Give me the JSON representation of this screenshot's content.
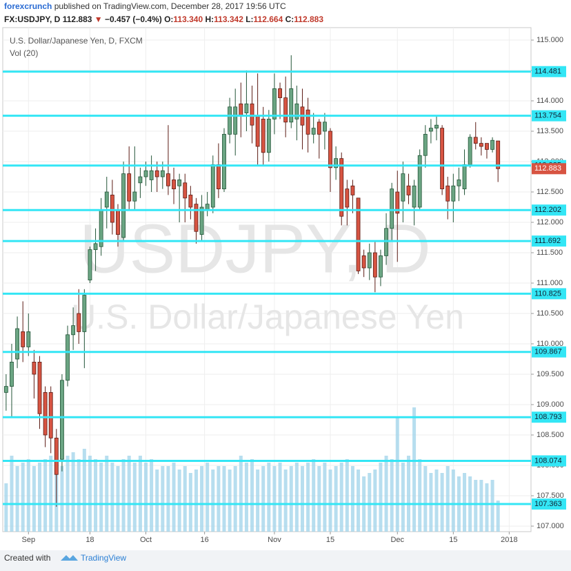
{
  "header": {
    "author": "forexcrunch",
    "published": "published on TradingView.com, December 28, 2017 19:56 UTC",
    "symbol": "FX:USDJPY, D",
    "last": "112.883",
    "arrow": "▼",
    "change": "−0.457 (−0.4%)",
    "open_label": "O:",
    "open": "113.340",
    "high_label": "H:",
    "high": "113.342",
    "low_label": "L:",
    "low": "112.664",
    "close_label": "C:",
    "close": "112.883"
  },
  "footer": {
    "created": "Created with",
    "brand": "TradingView"
  },
  "chart_data": {
    "type": "candlestick",
    "title": "U.S. Dollar/Japanese Yen, D, FXCM",
    "subtitle": "Vol (20)",
    "watermark": "USDJPY, D",
    "watermark_sub": "U.S. Dollar/Japanese Yen",
    "up_color": "#6ba583",
    "down_color": "#d75442",
    "volume_color": "#9fd3ea",
    "level_color": "#33e6f5",
    "grid": true,
    "xlim": [
      -0.6,
      93.9
    ],
    "ylim": [
      106.909,
      115.205
    ],
    "xticks": [
      {
        "value": 4,
        "label": "Sep"
      },
      {
        "value": 15,
        "label": "18"
      },
      {
        "value": 25,
        "label": "Oct"
      },
      {
        "value": 35.5,
        "label": "16"
      },
      {
        "value": 48,
        "label": "Nov"
      },
      {
        "value": 58,
        "label": "15"
      },
      {
        "value": 70,
        "label": "Dec"
      },
      {
        "value": 80,
        "label": "15"
      },
      {
        "value": 90,
        "label": "2018"
      }
    ],
    "yticks": [
      {
        "value": 107,
        "label": "107.000"
      },
      {
        "value": 107.5,
        "label": "107.500"
      },
      {
        "value": 108,
        "label": "108.000"
      },
      {
        "value": 108.5,
        "label": "108.500"
      },
      {
        "value": 109,
        "label": "109.000"
      },
      {
        "value": 109.5,
        "label": "109.500"
      },
      {
        "value": 110,
        "label": "110.000"
      },
      {
        "value": 110.5,
        "label": "110.500"
      },
      {
        "value": 111,
        "label": "111.000"
      },
      {
        "value": 111.5,
        "label": "111.500"
      },
      {
        "value": 112,
        "label": "112.000"
      },
      {
        "value": 112.5,
        "label": "112.500"
      },
      {
        "value": 113,
        "label": "113.000"
      },
      {
        "value": 113.5,
        "label": "113.500"
      },
      {
        "value": 114,
        "label": "114.000"
      },
      {
        "value": 114.5,
        "label": "114.500"
      },
      {
        "value": 115,
        "label": "115.000"
      }
    ],
    "levels": [
      114.481,
      113.754,
      112.935,
      112.202,
      111.692,
      110.825,
      109.867,
      108.793,
      108.074,
      107.363
    ],
    "last_price": 112.883,
    "candles": [
      {
        "o": 109.2,
        "h": 109.5,
        "l": 108.9,
        "c": 109.3
      },
      {
        "o": 109.3,
        "h": 110.0,
        "l": 108.8,
        "c": 109.7
      },
      {
        "o": 109.75,
        "h": 110.45,
        "l": 109.6,
        "c": 110.25
      },
      {
        "o": 110.2,
        "h": 110.7,
        "l": 109.7,
        "c": 109.95
      },
      {
        "o": 109.95,
        "h": 110.5,
        "l": 109.8,
        "c": 110.2
      },
      {
        "o": 109.7,
        "h": 109.9,
        "l": 109.1,
        "c": 109.5
      },
      {
        "o": 109.7,
        "h": 109.8,
        "l": 108.6,
        "c": 108.85
      },
      {
        "o": 109.2,
        "h": 109.3,
        "l": 108.3,
        "c": 108.5
      },
      {
        "o": 109.2,
        "h": 109.3,
        "l": 108.2,
        "c": 108.45
      },
      {
        "o": 108.45,
        "h": 108.6,
        "l": 107.32,
        "c": 107.85
      },
      {
        "o": 108.1,
        "h": 109.5,
        "l": 107.9,
        "c": 109.4
      },
      {
        "o": 109.4,
        "h": 110.3,
        "l": 109.3,
        "c": 110.15
      },
      {
        "o": 110.15,
        "h": 110.6,
        "l": 109.9,
        "c": 110.3
      },
      {
        "o": 110.5,
        "h": 110.9,
        "l": 110.0,
        "c": 110.2
      },
      {
        "o": 110.2,
        "h": 110.9,
        "l": 109.6,
        "c": 110.8
      },
      {
        "o": 111.05,
        "h": 111.6,
        "l": 111.0,
        "c": 111.55
      },
      {
        "o": 111.55,
        "h": 111.9,
        "l": 111.2,
        "c": 111.65
      },
      {
        "o": 111.6,
        "h": 112.4,
        "l": 111.45,
        "c": 112.2
      },
      {
        "o": 112.25,
        "h": 112.75,
        "l": 111.9,
        "c": 112.5
      },
      {
        "o": 112.45,
        "h": 112.7,
        "l": 111.8,
        "c": 112.0
      },
      {
        "o": 112.2,
        "h": 112.3,
        "l": 111.6,
        "c": 111.8
      },
      {
        "o": 111.75,
        "h": 113.0,
        "l": 111.7,
        "c": 112.8
      },
      {
        "o": 112.8,
        "h": 113.25,
        "l": 112.2,
        "c": 112.35
      },
      {
        "o": 112.35,
        "h": 113.25,
        "l": 112.2,
        "c": 112.5
      },
      {
        "o": 112.65,
        "h": 112.9,
        "l": 112.4,
        "c": 112.75
      },
      {
        "o": 112.75,
        "h": 113.0,
        "l": 112.6,
        "c": 112.85
      },
      {
        "o": 112.7,
        "h": 113.1,
        "l": 112.5,
        "c": 112.85
      },
      {
        "o": 112.85,
        "h": 113.0,
        "l": 112.5,
        "c": 112.75
      },
      {
        "o": 112.75,
        "h": 113.0,
        "l": 112.55,
        "c": 112.85
      },
      {
        "o": 112.8,
        "h": 113.6,
        "l": 112.45,
        "c": 112.6
      },
      {
        "o": 112.7,
        "h": 112.9,
        "l": 112.3,
        "c": 112.55
      },
      {
        "o": 112.6,
        "h": 112.8,
        "l": 112.0,
        "c": 112.7
      },
      {
        "o": 112.65,
        "h": 112.8,
        "l": 112.0,
        "c": 112.4
      },
      {
        "o": 112.45,
        "h": 112.6,
        "l": 112.05,
        "c": 112.25
      },
      {
        "o": 112.3,
        "h": 112.4,
        "l": 111.65,
        "c": 111.85
      },
      {
        "o": 111.8,
        "h": 112.45,
        "l": 111.7,
        "c": 112.25
      },
      {
        "o": 112.2,
        "h": 112.5,
        "l": 112.1,
        "c": 112.3
      },
      {
        "o": 112.25,
        "h": 113.1,
        "l": 112.15,
        "c": 112.95
      },
      {
        "o": 112.95,
        "h": 113.3,
        "l": 112.4,
        "c": 112.55
      },
      {
        "o": 112.55,
        "h": 113.55,
        "l": 112.5,
        "c": 113.45
      },
      {
        "o": 113.45,
        "h": 114.05,
        "l": 113.3,
        "c": 113.9
      },
      {
        "o": 113.45,
        "h": 114.2,
        "l": 113.1,
        "c": 113.9
      },
      {
        "o": 113.95,
        "h": 114.3,
        "l": 113.4,
        "c": 113.75
      },
      {
        "o": 113.8,
        "h": 114.5,
        "l": 113.5,
        "c": 113.95
      },
      {
        "o": 113.95,
        "h": 114.25,
        "l": 113.3,
        "c": 113.6
      },
      {
        "o": 113.75,
        "h": 114.45,
        "l": 112.95,
        "c": 113.25
      },
      {
        "o": 113.7,
        "h": 113.9,
        "l": 112.95,
        "c": 113.15
      },
      {
        "o": 113.15,
        "h": 113.85,
        "l": 113.0,
        "c": 113.7
      },
      {
        "o": 113.7,
        "h": 114.45,
        "l": 113.45,
        "c": 114.2
      },
      {
        "o": 114.2,
        "h": 114.3,
        "l": 113.7,
        "c": 114.05
      },
      {
        "o": 114.05,
        "h": 114.4,
        "l": 113.4,
        "c": 113.65
      },
      {
        "o": 113.65,
        "h": 114.75,
        "l": 113.55,
        "c": 114.2
      },
      {
        "o": 113.7,
        "h": 114.25,
        "l": 113.35,
        "c": 113.95
      },
      {
        "o": 113.9,
        "h": 114.2,
        "l": 113.2,
        "c": 113.6
      },
      {
        "o": 113.85,
        "h": 114.05,
        "l": 113.15,
        "c": 113.45
      },
      {
        "o": 113.45,
        "h": 113.8,
        "l": 113.3,
        "c": 113.55
      },
      {
        "o": 113.65,
        "h": 113.7,
        "l": 113.05,
        "c": 113.45
      },
      {
        "o": 113.5,
        "h": 113.8,
        "l": 113.2,
        "c": 113.65
      },
      {
        "o": 113.5,
        "h": 113.55,
        "l": 112.5,
        "c": 112.9
      },
      {
        "o": 112.9,
        "h": 113.25,
        "l": 112.7,
        "c": 113.05
      },
      {
        "o": 113.05,
        "h": 113.15,
        "l": 111.95,
        "c": 112.1
      },
      {
        "o": 112.55,
        "h": 112.7,
        "l": 111.95,
        "c": 112.25
      },
      {
        "o": 112.6,
        "h": 112.7,
        "l": 112.15,
        "c": 112.45
      },
      {
        "o": 112.4,
        "h": 112.4,
        "l": 111.15,
        "c": 111.2
      },
      {
        "o": 111.45,
        "h": 111.55,
        "l": 111.1,
        "c": 111.25
      },
      {
        "o": 111.25,
        "h": 111.65,
        "l": 111.05,
        "c": 111.5
      },
      {
        "o": 111.5,
        "h": 111.7,
        "l": 110.85,
        "c": 111.1
      },
      {
        "o": 111.1,
        "h": 111.55,
        "l": 110.95,
        "c": 111.45
      },
      {
        "o": 111.45,
        "h": 112.15,
        "l": 111.3,
        "c": 111.9
      },
      {
        "o": 111.9,
        "h": 112.65,
        "l": 111.7,
        "c": 112.55
      },
      {
        "o": 112.5,
        "h": 112.85,
        "l": 111.35,
        "c": 112.15
      },
      {
        "o": 112.35,
        "h": 113.0,
        "l": 112.0,
        "c": 112.8
      },
      {
        "o": 112.6,
        "h": 112.8,
        "l": 112.3,
        "c": 112.45
      },
      {
        "o": 112.25,
        "h": 112.7,
        "l": 111.95,
        "c": 112.6
      },
      {
        "o": 112.25,
        "h": 113.2,
        "l": 112.2,
        "c": 113.1
      },
      {
        "o": 113.1,
        "h": 113.6,
        "l": 112.9,
        "c": 113.45
      },
      {
        "o": 113.5,
        "h": 113.7,
        "l": 113.3,
        "c": 113.55
      },
      {
        "o": 113.55,
        "h": 113.75,
        "l": 113.35,
        "c": 113.6
      },
      {
        "o": 113.55,
        "h": 113.6,
        "l": 112.45,
        "c": 112.55
      },
      {
        "o": 112.6,
        "h": 112.75,
        "l": 112.05,
        "c": 112.35
      },
      {
        "o": 112.35,
        "h": 112.8,
        "l": 112.0,
        "c": 112.6
      },
      {
        "o": 112.6,
        "h": 112.9,
        "l": 112.35,
        "c": 112.7
      },
      {
        "o": 112.55,
        "h": 113.2,
        "l": 112.45,
        "c": 112.95
      },
      {
        "o": 112.95,
        "h": 113.45,
        "l": 112.9,
        "c": 113.4
      },
      {
        "o": 113.4,
        "h": 113.65,
        "l": 113.2,
        "c": 113.3
      },
      {
        "o": 113.3,
        "h": 113.4,
        "l": 113.1,
        "c": 113.25
      },
      {
        "o": 113.3,
        "h": 113.3,
        "l": 113.05,
        "c": 113.2
      },
      {
        "o": 113.2,
        "h": 113.4,
        "l": 113.15,
        "c": 113.35
      },
      {
        "o": 113.34,
        "h": 113.342,
        "l": 112.664,
        "c": 112.883
      }
    ],
    "volume": [
      70,
      110,
      95,
      100,
      105,
      95,
      100,
      105,
      110,
      105,
      95,
      110,
      115,
      105,
      120,
      110,
      105,
      100,
      110,
      100,
      95,
      105,
      110,
      100,
      110,
      100,
      105,
      90,
      95,
      95,
      100,
      90,
      95,
      85,
      90,
      95,
      100,
      90,
      95,
      95,
      90,
      95,
      110,
      100,
      105,
      90,
      95,
      100,
      95,
      100,
      90,
      95,
      100,
      95,
      100,
      105,
      95,
      100,
      90,
      95,
      100,
      105,
      95,
      90,
      80,
      85,
      90,
      100,
      110,
      105,
      165,
      100,
      110,
      180,
      105,
      95,
      85,
      90,
      85,
      95,
      90,
      80,
      85,
      80,
      75,
      75,
      70,
      75,
      45
    ]
  }
}
